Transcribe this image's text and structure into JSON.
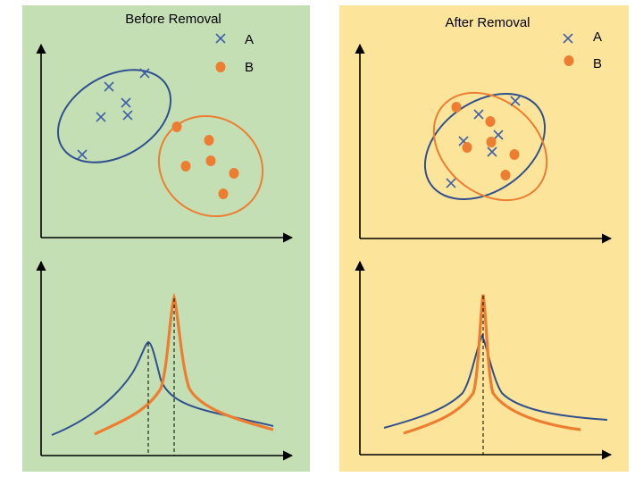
{
  "colors": {
    "a": "#3f5fa8",
    "b": "#ed7d31",
    "before_bg": "#c5dfb4",
    "after_bg": "#fde49b"
  },
  "legend": {
    "a_label": "A",
    "b_label": "B"
  },
  "panels": [
    {
      "id": "before",
      "title": "Before Removal"
    },
    {
      "id": "after",
      "title": "After Removal"
    }
  ]
}
